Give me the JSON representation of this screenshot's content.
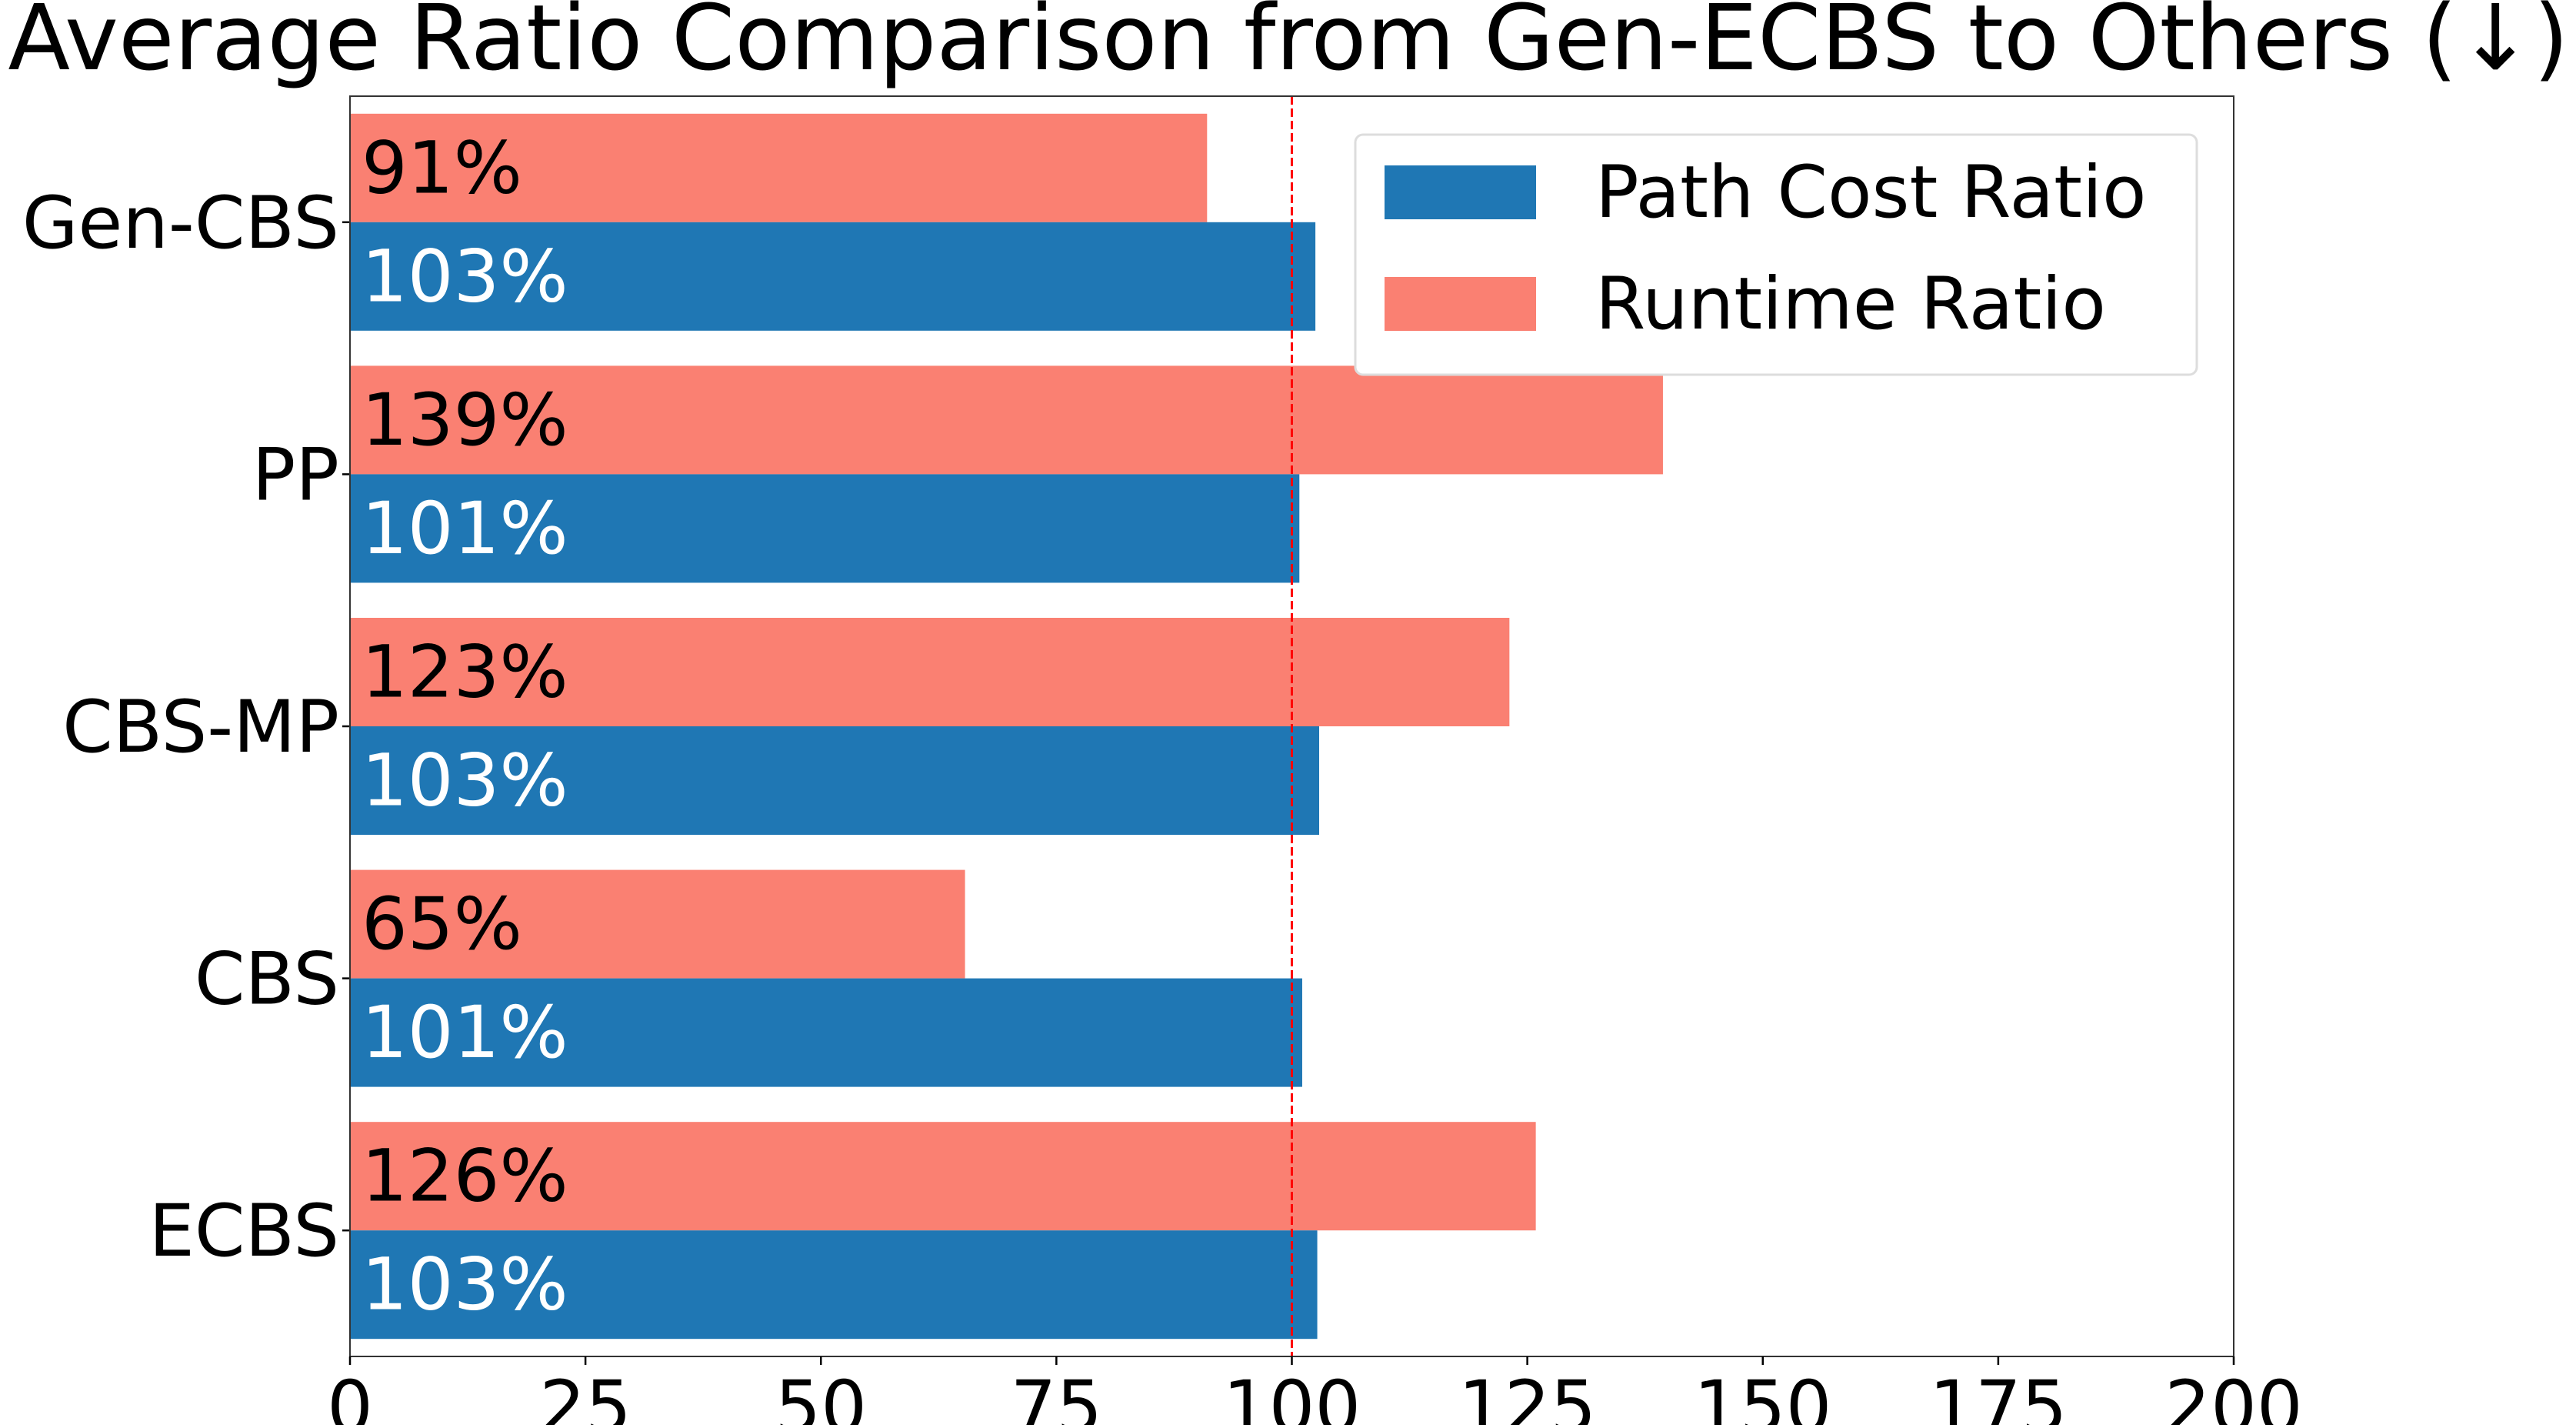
{
  "chart_data": {
    "type": "bar",
    "orientation": "horizontal",
    "title": "Average Ratio Comparison from Gen-ECBS to Others (↓)",
    "xlabel": "",
    "ylabel": "",
    "xlim": [
      0,
      200
    ],
    "x_ticks": [
      "0",
      "25",
      "50",
      "75",
      "100",
      "125",
      "150",
      "175",
      "200"
    ],
    "x_tick_values": [
      0,
      25,
      50,
      75,
      100,
      125,
      150,
      175,
      200
    ],
    "categories": [
      "Gen-CBS",
      "PP",
      "CBS-MP",
      "CBS",
      "ECBS"
    ],
    "series": [
      {
        "name": "Path Cost Ratio",
        "color": "#1f77b4",
        "values": [
          102.5,
          100.8,
          102.9,
          101.1,
          102.7
        ],
        "labels": [
          "103%",
          "101%",
          "103%",
          "101%",
          "103%"
        ],
        "label_color": "#ffffff"
      },
      {
        "name": "Runtime Ratio",
        "color": "#fa8072",
        "values": [
          91,
          139.4,
          123.1,
          65.3,
          125.9
        ],
        "labels": [
          "91%",
          "139%",
          "123%",
          "65%",
          "126%"
        ],
        "label_color": "#000000"
      }
    ],
    "reference_line": {
      "x": 100,
      "color": "#ff0000",
      "style": "dashed"
    },
    "grid": false,
    "legend_position": "top-right"
  }
}
